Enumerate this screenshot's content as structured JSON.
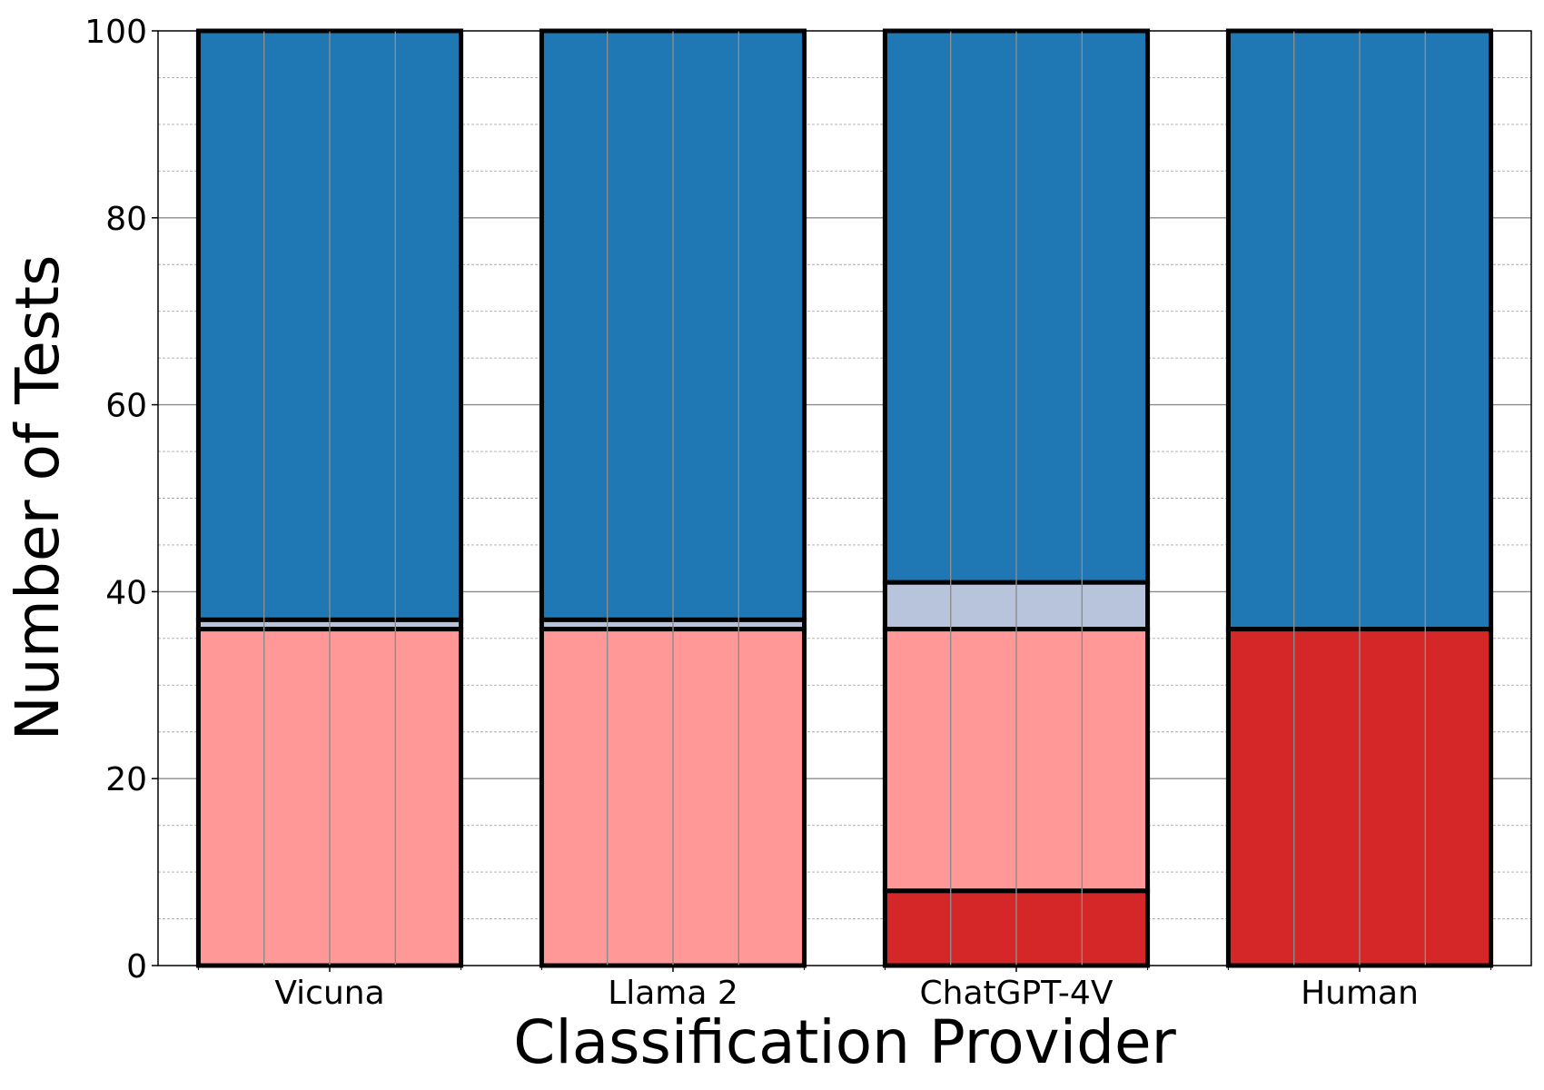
{
  "chart_data": {
    "type": "bar",
    "stacked": true,
    "xlabel": "Classification Provider",
    "ylabel": "Number of Tests",
    "categories": [
      "Vicuna",
      "Llama 2",
      "ChatGPT-4V",
      "Human"
    ],
    "ylim": [
      0,
      100
    ],
    "yticks": [
      "0",
      "20",
      "40",
      "60",
      "80",
      "100"
    ],
    "grid": true,
    "legend": "none",
    "series": [
      {
        "color": "#d62728",
        "values": [
          0,
          0,
          8,
          36
        ]
      },
      {
        "color": "#ff9896",
        "values": [
          36,
          36,
          28,
          0
        ]
      },
      {
        "color": "#b8c4dc",
        "values": [
          1,
          1,
          5,
          0
        ]
      },
      {
        "color": "#1f77b4",
        "values": [
          63,
          63,
          59,
          64
        ]
      }
    ]
  }
}
